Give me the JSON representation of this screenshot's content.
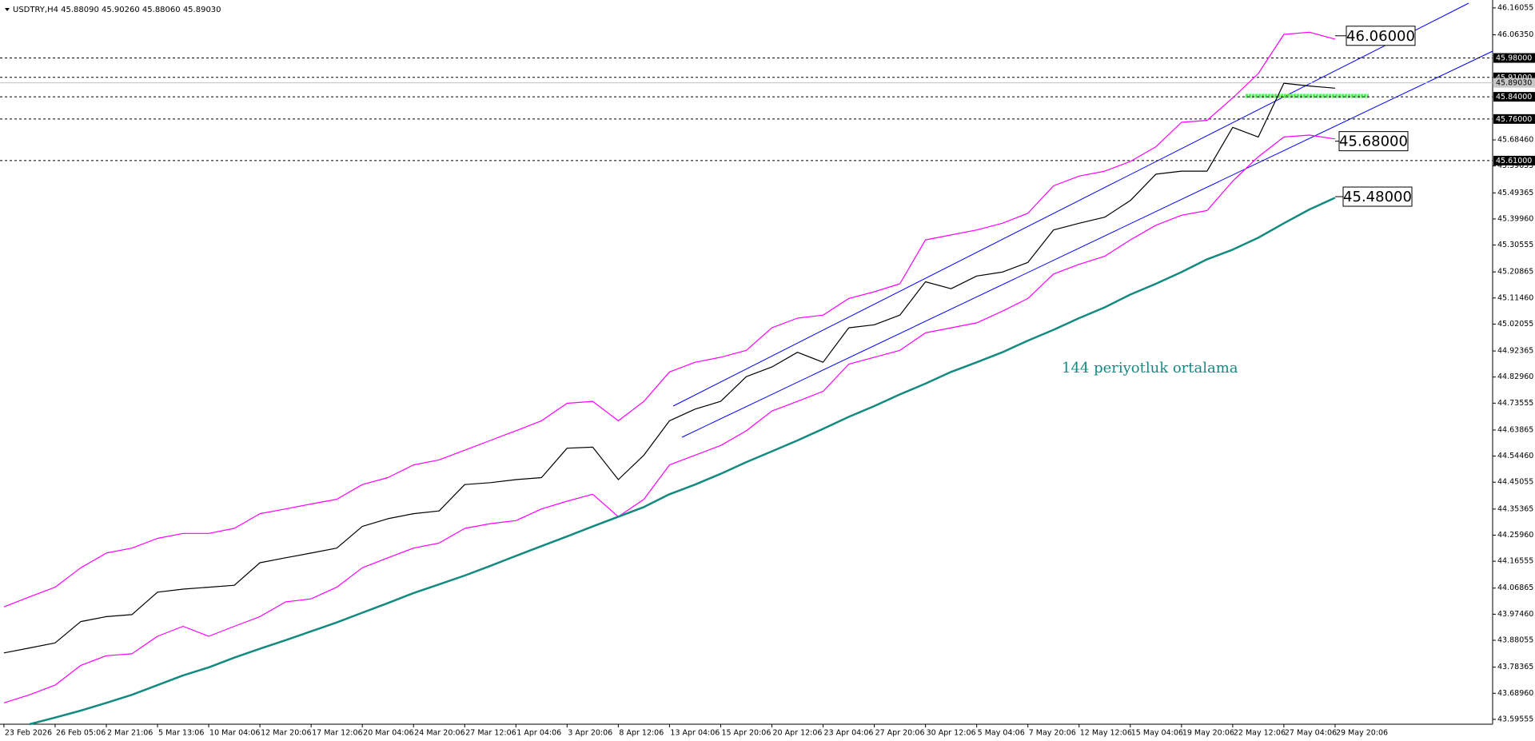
{
  "chart_data": {
    "type": "line",
    "header": "USDTRY,H4  45.88090 45.90260 45.88060 45.89030",
    "annotation": "144 periyotluk ortalama",
    "categories": [
      "23 Feb 2026",
      null,
      "26 Feb 05:06",
      null,
      "2 Mar 21:06",
      null,
      "5 Mar 13:06",
      null,
      "10 Mar 04:06",
      null,
      "12 Mar 20:06",
      null,
      "17 Mar 12:06",
      null,
      "20 Mar 04:06",
      null,
      "24 Mar 20:06",
      null,
      "27 Mar 12:06",
      null,
      "1 Apr 04:06",
      null,
      "3 Apr 20:06",
      null,
      "8 Apr 12:06",
      null,
      "13 Apr 04:06",
      null,
      "15 Apr 20:06",
      null,
      "20 Apr 12:06",
      null,
      "23 Apr 04:06",
      null,
      "27 Apr 20:06",
      null,
      "30 Apr 12:06",
      null,
      "5 May 04:06",
      null,
      "7 May 20:06",
      null,
      "12 May 12:06",
      null,
      "15 May 04:06",
      null,
      "19 May 20:06",
      null,
      "22 May 12:06",
      null,
      "27 May 04:06",
      null,
      "29 May 20:06"
    ],
    "series": [
      {
        "color": "#000000",
        "values": [
          43.835,
          43.853,
          43.871,
          43.948,
          43.966,
          43.973,
          44.054,
          44.065,
          44.072,
          44.079,
          44.16,
          44.178,
          44.195,
          44.213,
          44.291,
          44.319,
          44.337,
          44.347,
          44.442,
          44.449,
          44.46,
          44.467,
          44.573,
          44.577,
          44.46,
          44.548,
          44.672,
          44.714,
          44.742,
          44.831,
          44.866,
          44.919,
          44.883,
          45.007,
          45.018,
          45.053,
          45.173,
          45.148,
          45.194,
          45.208,
          45.243,
          45.36,
          45.384,
          45.406,
          45.466,
          45.561,
          45.572,
          45.572,
          45.73,
          45.695,
          45.889,
          45.879,
          45.871
        ]
      },
      {
        "color": "#ff00ff",
        "values": [
          44.001,
          44.037,
          44.072,
          44.142,
          44.195,
          44.213,
          44.248,
          44.266,
          44.266,
          44.284,
          44.337,
          44.354,
          44.372,
          44.389,
          44.442,
          44.467,
          44.513,
          44.531,
          44.566,
          44.601,
          44.636,
          44.672,
          44.735,
          44.742,
          44.672,
          44.742,
          44.848,
          44.883,
          44.901,
          44.926,
          45.007,
          45.042,
          45.053,
          45.113,
          45.137,
          45.166,
          45.324,
          45.342,
          45.36,
          45.384,
          45.42,
          45.519,
          45.554,
          45.572,
          45.607,
          45.66,
          45.748,
          45.755,
          45.836,
          45.924,
          46.065,
          46.073,
          46.048
        ]
      },
      {
        "color": "#ff00ff",
        "values": [
          43.655,
          43.684,
          43.719,
          43.79,
          43.825,
          43.832,
          43.895,
          43.931,
          43.895,
          43.931,
          43.966,
          44.019,
          44.03,
          44.072,
          44.142,
          44.178,
          44.213,
          44.231,
          44.284,
          44.301,
          44.312,
          44.354,
          44.382,
          44.407,
          44.326,
          44.389,
          44.513,
          44.548,
          44.583,
          44.636,
          44.707,
          44.742,
          44.778,
          44.876,
          44.901,
          44.926,
          44.989,
          45.007,
          45.025,
          45.067,
          45.113,
          45.201,
          45.236,
          45.265,
          45.324,
          45.377,
          45.413,
          45.43,
          45.536,
          45.624,
          45.695,
          45.702,
          45.688
        ]
      },
      {
        "color": "#138a80",
        "values": [
          null,
          43.578,
          43.602,
          43.627,
          43.655,
          43.684,
          43.719,
          43.754,
          43.783,
          43.818,
          43.85,
          43.881,
          43.913,
          43.945,
          43.98,
          44.015,
          44.051,
          44.082,
          44.114,
          44.149,
          44.185,
          44.22,
          44.255,
          44.291,
          44.326,
          44.361,
          44.407,
          44.442,
          44.481,
          44.523,
          44.562,
          44.601,
          44.643,
          44.686,
          44.725,
          44.767,
          44.806,
          44.848,
          44.883,
          44.919,
          44.961,
          45.0,
          45.042,
          45.081,
          45.127,
          45.166,
          45.208,
          45.254,
          45.289,
          45.332,
          45.384,
          45.434,
          45.476
        ]
      }
    ],
    "ylim": [
      43.578,
      46.189
    ],
    "yticks": [
      46.16055,
      {
        "value": 46.0635,
        "label": "46.06350"
      },
      {
        "value": 45.6846,
        "label": "45.68460"
      },
      45.59055,
      45.49365,
      {
        "value": 45.3996,
        "label": "45.39960"
      },
      45.30555,
      45.20865,
      {
        "value": 45.1146,
        "label": "45.11460"
      },
      45.02055,
      44.92365,
      {
        "value": 44.8296,
        "label": "44.82960"
      },
      44.73555,
      44.63865,
      {
        "value": 44.5446,
        "label": "44.54460"
      },
      44.45055,
      44.35365,
      {
        "value": 44.2596,
        "label": "44.25960"
      },
      44.16555,
      44.06865,
      {
        "value": 43.9746,
        "label": "43.97460"
      },
      43.88055,
      43.78365,
      {
        "value": 43.6896,
        "label": "43.68960"
      },
      43.59555
    ],
    "levels": [
      {
        "value": 45.98,
        "label": "45.98000"
      },
      {
        "value": 45.91,
        "label": "45.91000"
      },
      {
        "value": 45.84,
        "label": "45.84000"
      },
      {
        "value": 45.76,
        "label": "45.76000"
      },
      {
        "value": 45.61,
        "label": "45.61000"
      }
    ],
    "current": {
      "value": 45.8903,
      "label": "45.89030"
    },
    "callouts": [
      {
        "value": 46.06,
        "label": "46.06000"
      },
      {
        "value": 45.68,
        "label": "45.68000"
      },
      {
        "value": 45.48,
        "label": "45.48000"
      }
    ]
  }
}
